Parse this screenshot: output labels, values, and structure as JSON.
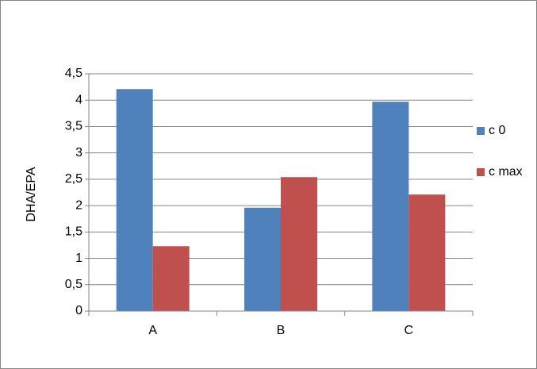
{
  "chart_data": {
    "type": "bar",
    "y_label": "DHA/EPA",
    "categories": [
      "A",
      "B",
      "C"
    ],
    "series": [
      {
        "name": "c 0",
        "color": "#4f81bd",
        "values": [
          4.21,
          1.96,
          3.97
        ]
      },
      {
        "name": "c max",
        "color": "#c0504d",
        "values": [
          1.23,
          2.54,
          2.21
        ]
      }
    ],
    "ylim": [
      0,
      4.5
    ],
    "yticks": [
      0,
      {
        "value": 0.5,
        "label": "0,5"
      },
      1,
      {
        "value": 1.5,
        "label": "1,5"
      },
      2,
      {
        "value": 2.5,
        "label": "2,5"
      },
      3,
      {
        "value": 3.5,
        "label": "3,5"
      },
      4,
      {
        "value": 4.5,
        "label": "4,5"
      }
    ],
    "grid": true,
    "legend": "right"
  }
}
